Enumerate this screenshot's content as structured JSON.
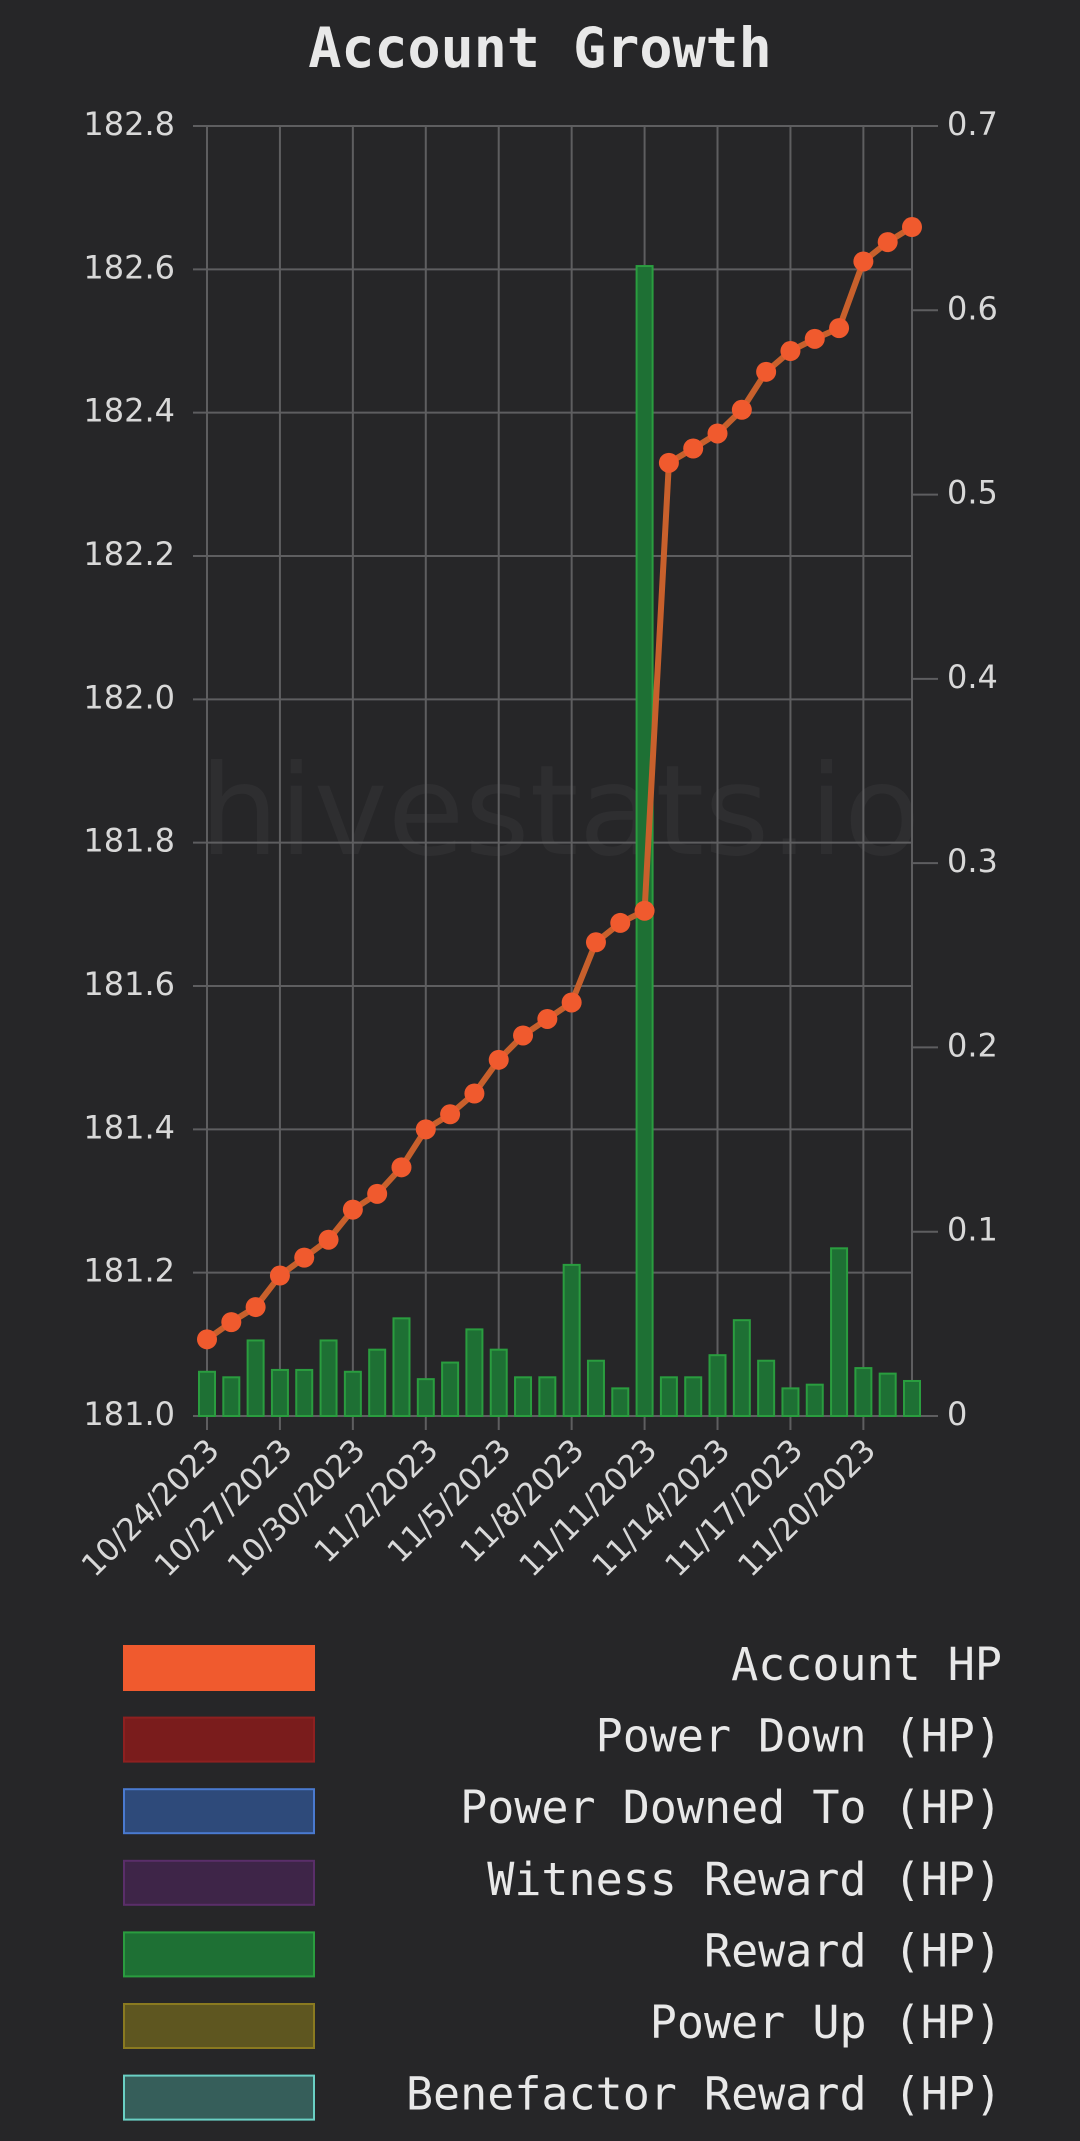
{
  "chart_data": {
    "type": "bar_line",
    "title": "Account Growth",
    "watermark": "hivestats.io",
    "categories": [
      "10/24/2023",
      null,
      null,
      "10/27/2023",
      null,
      null,
      "10/30/2023",
      null,
      null,
      "11/2/2023",
      null,
      null,
      "11/5/2023",
      null,
      null,
      "11/8/2023",
      null,
      null,
      "11/11/2023",
      null,
      null,
      "11/14/2023",
      null,
      null,
      "11/17/2023",
      null,
      null,
      "11/20/2023",
      null,
      null
    ],
    "series": [
      {
        "name": "Account HP",
        "color": "#f05a2e",
        "line_color": "#c8602c",
        "kind": "line",
        "axis": "y",
        "values": [
          181.107,
          181.131,
          181.152,
          181.196,
          181.221,
          181.246,
          181.288,
          181.31,
          181.347,
          181.4,
          181.421,
          181.45,
          181.497,
          181.531,
          181.554,
          181.577,
          181.661,
          181.688,
          181.705,
          182.33,
          182.35,
          182.371,
          182.404,
          182.457,
          182.486,
          182.503,
          182.518,
          182.611,
          182.638,
          182.659
        ]
      },
      {
        "name": "Power Down (HP)",
        "color": "#7a1c1c",
        "border": "#8e2020"
      },
      {
        "name": "Power Downed To (HP)",
        "color": "#2e4a7a",
        "border": "#4a7ad0"
      },
      {
        "name": "Witness Reward (HP)",
        "color": "#3e2548",
        "border": "#5a2e6a"
      },
      {
        "name": "Reward (HP)",
        "color": "#1e7034",
        "border": "#2a9d3f",
        "kind": "bar",
        "axis": "y2",
        "values": [
          0.024,
          0.021,
          0.041,
          0.025,
          0.025,
          0.041,
          0.024,
          0.036,
          0.053,
          0.02,
          0.029,
          0.047,
          0.036,
          0.021,
          0.021,
          0.082,
          0.03,
          0.015,
          0.624,
          0.021,
          0.021,
          0.033,
          0.052,
          0.03,
          0.015,
          0.017,
          0.091,
          0.026,
          0.023,
          0.019
        ]
      },
      {
        "name": "Power Up (HP)",
        "color": "#5e5620",
        "border": "#8a7a20"
      },
      {
        "name": "Benefactor Reward (HP)",
        "color": "#365e5a",
        "border": "#6ad0c4"
      }
    ],
    "ylim": [
      181.0,
      182.8
    ],
    "yticks": [
      {
        "value": 181,
        "label": "181.0"
      },
      181.2,
      181.4,
      181.6,
      181.8,
      {
        "value": 182,
        "label": "182.0"
      },
      182.2,
      182.4,
      182.6,
      182.8
    ],
    "y2lim": [
      0,
      0.7
    ],
    "y2ticks": [
      0,
      0.1,
      0.2,
      0.3,
      0.4,
      0.5,
      0.6,
      0.7
    ],
    "grid": true
  }
}
